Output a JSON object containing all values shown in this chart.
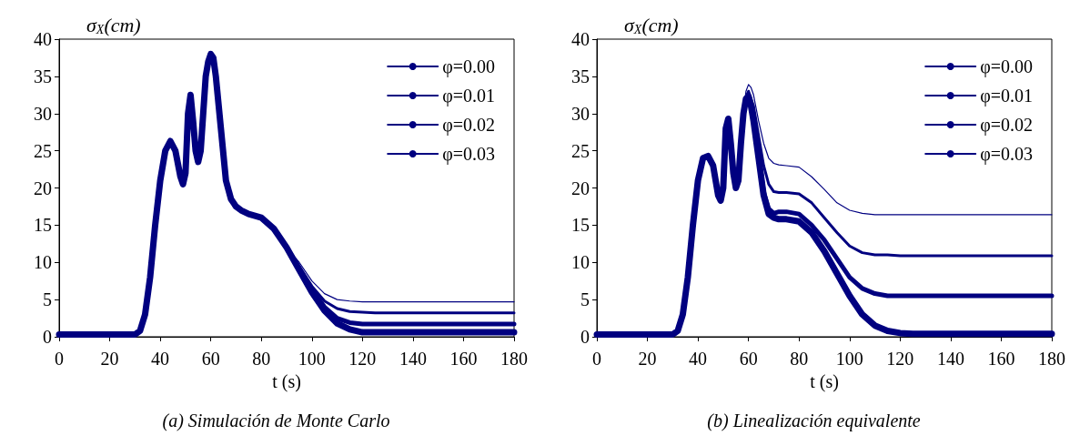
{
  "chart_data": [
    {
      "type": "line",
      "title": "(a) Simulación de Monte Carlo",
      "xlabel": "t (s)",
      "ylabel": "σ$_{X}$(cm)",
      "x": [
        0,
        30,
        32,
        34,
        36,
        38,
        40,
        42,
        44,
        46,
        48,
        49,
        50,
        51,
        52,
        53,
        54,
        55,
        56,
        57,
        58,
        59,
        60,
        61,
        62,
        64,
        66,
        68,
        70,
        72,
        75,
        80,
        85,
        90,
        95,
        100,
        105,
        110,
        115,
        120,
        125,
        130,
        140,
        160,
        180
      ],
      "xlim": [
        0,
        180
      ],
      "xticks": [
        0,
        20,
        40,
        60,
        80,
        100,
        120,
        140,
        160,
        180
      ],
      "ylim": [
        0,
        40
      ],
      "yticks": [
        0,
        5,
        10,
        15,
        20,
        25,
        30,
        35,
        40
      ],
      "grid": false,
      "legend": "top right",
      "marker": "none",
      "line_style": "solid",
      "series": [
        {
          "name": "φ=0.00",
          "color": "#000080",
          "values": [
            0.3,
            0.3,
            0.8,
            3,
            8,
            15,
            21,
            25,
            26.3,
            25,
            21.5,
            20.5,
            22,
            30,
            32.5,
            29,
            25,
            23.5,
            25,
            30,
            35,
            37,
            38,
            37.5,
            35,
            28,
            21,
            18.5,
            17.5,
            17,
            16.5,
            16,
            14.5,
            12,
            9,
            6,
            3.5,
            1.8,
            1,
            0.6,
            0.6,
            0.6,
            0.6,
            0.6,
            0.6
          ]
        },
        {
          "name": "φ=0.01",
          "color": "#000080",
          "values": [
            0.3,
            0.3,
            0.8,
            3,
            8,
            15,
            21,
            25,
            26.3,
            25,
            21.5,
            20.5,
            22,
            30,
            32.5,
            29,
            25,
            23.5,
            25,
            30,
            35,
            37,
            38,
            37.5,
            35,
            28,
            21,
            18.5,
            17.5,
            17,
            16.5,
            16,
            14.5,
            12,
            9.2,
            6.3,
            4,
            2.5,
            1.9,
            1.7,
            1.7,
            1.7,
            1.7,
            1.7,
            1.7
          ]
        },
        {
          "name": "φ=0.02",
          "color": "#000080",
          "values": [
            0.3,
            0.3,
            0.8,
            3,
            8,
            15,
            21,
            25,
            26.3,
            25,
            21.5,
            20.5,
            22,
            30,
            32.5,
            29,
            25,
            23.5,
            25,
            30,
            35,
            37,
            38,
            37.5,
            35,
            28,
            21,
            18.5,
            17.5,
            17,
            16.5,
            16,
            14.5,
            12,
            9.5,
            6.8,
            4.8,
            3.8,
            3.4,
            3.3,
            3.2,
            3.2,
            3.2,
            3.2,
            3.2
          ]
        },
        {
          "name": "φ=0.03",
          "color": "#000080",
          "values": [
            0.3,
            0.3,
            0.8,
            3,
            8,
            15,
            21,
            25,
            26.3,
            25,
            21.5,
            20.5,
            22,
            30,
            32.5,
            29,
            25,
            23.5,
            25,
            30,
            35,
            37,
            38,
            37.5,
            35,
            28,
            21,
            18.5,
            17.5,
            17,
            16.5,
            16,
            14.5,
            12,
            10,
            7.5,
            5.8,
            5,
            4.8,
            4.7,
            4.7,
            4.7,
            4.7,
            4.7,
            4.7
          ]
        }
      ]
    },
    {
      "type": "line",
      "title": "(b) Linealización equivalente",
      "xlabel": "t (s)",
      "ylabel": "σ$_{X}$(cm)",
      "x": [
        0,
        30,
        32,
        34,
        36,
        38,
        40,
        42,
        44,
        46,
        48,
        49,
        50,
        51,
        52,
        53,
        54,
        55,
        56,
        57,
        58,
        59,
        60,
        61,
        62,
        64,
        66,
        68,
        70,
        72,
        75,
        80,
        85,
        90,
        95,
        100,
        105,
        110,
        115,
        120,
        125,
        130,
        140,
        160,
        180
      ],
      "xlim": [
        0,
        180
      ],
      "xticks": [
        0,
        20,
        40,
        60,
        80,
        100,
        120,
        140,
        160,
        180
      ],
      "ylim": [
        0,
        40
      ],
      "yticks": [
        0,
        5,
        10,
        15,
        20,
        25,
        30,
        35,
        40
      ],
      "grid": false,
      "legend": "top right",
      "marker": "none",
      "line_style": "solid",
      "series": [
        {
          "name": "φ=0.00",
          "color": "#000080",
          "values": [
            0.3,
            0.3,
            0.8,
            3,
            8,
            15,
            21,
            24,
            24.3,
            23,
            19,
            18.3,
            20,
            28,
            29.3,
            26,
            22,
            20,
            21,
            26,
            30,
            32,
            32.3,
            31,
            29,
            24,
            19,
            16.5,
            16,
            15.8,
            15.8,
            15.5,
            14,
            11.5,
            8.5,
            5.5,
            3,
            1.5,
            0.8,
            0.5,
            0.4,
            0.4,
            0.4,
            0.4,
            0.4
          ]
        },
        {
          "name": "φ=0.01",
          "color": "#000080",
          "values": [
            0.3,
            0.3,
            0.8,
            3,
            8,
            15,
            21,
            24,
            24.3,
            23,
            19,
            18.3,
            20,
            28,
            29.3,
            26,
            22,
            20,
            21,
            26,
            30,
            32,
            32.5,
            31.2,
            29.2,
            24.5,
            19.5,
            17.2,
            16.6,
            16.8,
            16.8,
            16.5,
            15,
            13,
            10.5,
            8,
            6.5,
            5.8,
            5.5,
            5.5,
            5.5,
            5.5,
            5.5,
            5.5,
            5.5
          ]
        },
        {
          "name": "φ=0.02",
          "color": "#000080",
          "values": [
            0.3,
            0.3,
            0.8,
            3,
            8,
            15,
            21,
            24,
            24.3,
            23,
            19,
            18.3,
            20,
            28,
            29.3,
            26,
            22,
            20,
            21,
            26,
            30,
            32.2,
            33,
            32,
            31,
            27,
            23,
            20.5,
            19.5,
            19.4,
            19.4,
            19.2,
            18,
            16,
            14,
            12.2,
            11.3,
            11,
            11,
            10.9,
            10.9,
            10.9,
            10.9,
            10.9,
            10.9
          ]
        },
        {
          "name": "φ=0.03",
          "color": "#000080",
          "values": [
            0.3,
            0.3,
            0.8,
            3,
            8,
            15,
            21,
            24,
            24.3,
            23,
            19,
            18.3,
            20,
            28,
            29.3,
            26,
            22,
            20,
            21,
            26,
            30,
            33,
            33.9,
            33.5,
            32.5,
            29,
            26,
            24,
            23.3,
            23.1,
            23,
            22.8,
            21.5,
            19.8,
            18,
            17,
            16.6,
            16.4,
            16.4,
            16.4,
            16.4,
            16.4,
            16.4,
            16.4,
            16.4
          ]
        }
      ]
    }
  ]
}
